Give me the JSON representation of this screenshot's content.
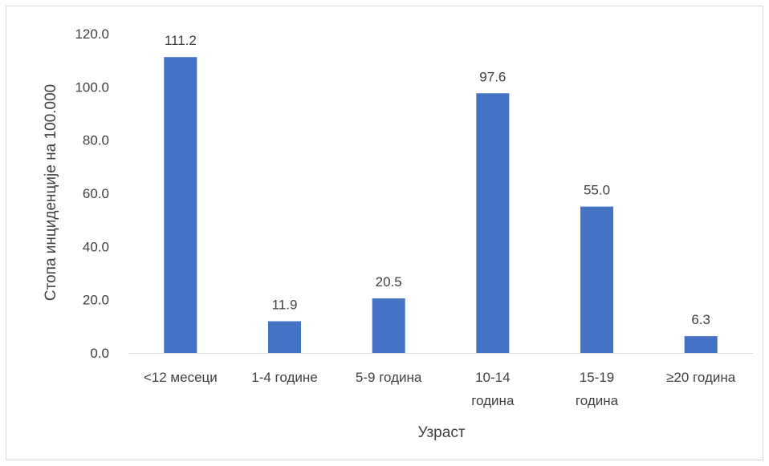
{
  "chart_data": {
    "type": "bar",
    "categories": [
      [
        "<12 месеци"
      ],
      [
        "1-4 године"
      ],
      [
        "5-9  година"
      ],
      [
        "10-14",
        "година"
      ],
      [
        "15-19",
        "година"
      ],
      [
        "≥20 година"
      ]
    ],
    "values": [
      111.2,
      11.9,
      20.5,
      97.6,
      55.0,
      6.3
    ],
    "data_labels": [
      "111.2",
      "11.9",
      "20.5",
      "97.6",
      "55.0",
      "6.3"
    ],
    "title": "",
    "xlabel": "Узраст",
    "ylabel": "Стопа инциденције на 100.000",
    "ylim": [
      0,
      120
    ],
    "yticks": [
      "0.0",
      "20.0",
      "40.0",
      "60.0",
      "80.0",
      "100.0",
      "120.0"
    ],
    "ytick_values": [
      0,
      20,
      40,
      60,
      80,
      100,
      120
    ],
    "grid": false,
    "legend": "none",
    "colors": {
      "bar": "#4472c4",
      "axis": "#d9d9d9",
      "text": "#404040"
    }
  }
}
